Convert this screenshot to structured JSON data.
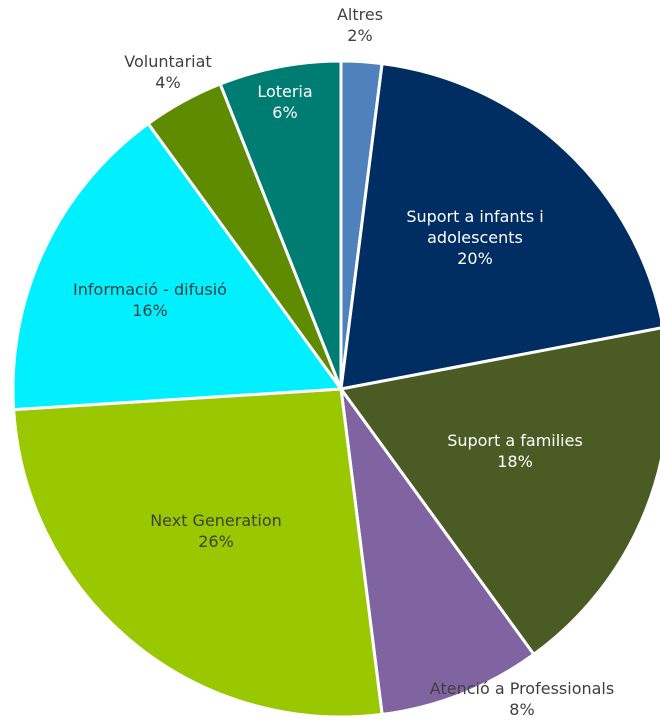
{
  "chart_data": {
    "type": "pie",
    "title": "",
    "legend": "none",
    "slices": [
      {
        "name": "Altres",
        "value": 2,
        "pct_label": "2%",
        "color": "#4f81bd",
        "label_color": "#404040",
        "label_lines": [
          "Altres"
        ]
      },
      {
        "name": "Suport a infants i adolescents",
        "value": 20,
        "pct_label": "20%",
        "color": "#002d62",
        "label_color": "#ffffff",
        "label_lines": [
          "Suport a infants i",
          "adolescents"
        ]
      },
      {
        "name": "Suport a famílies",
        "value": 18,
        "pct_label": "18%",
        "color": "#4a5b23",
        "label_color": "#ffffff",
        "label_lines": [
          "Suport a families"
        ]
      },
      {
        "name": "Atenció a Professionals",
        "value": 8,
        "pct_label": "8%",
        "color": "#8064a2",
        "label_color": "#404040",
        "label_lines": [
          "Atenció a Professionals"
        ]
      },
      {
        "name": "Next Generation",
        "value": 26,
        "pct_label": "26%",
        "color": "#99c800",
        "label_color": "#404040",
        "label_lines": [
          "Next Generation"
        ]
      },
      {
        "name": "Informació - difusió",
        "value": 16,
        "pct_label": "16%",
        "color": "#00f0ff",
        "label_color": "#404040",
        "label_lines": [
          "Informació - difusió"
        ]
      },
      {
        "name": "Voluntariat",
        "value": 4,
        "pct_label": "4%",
        "color": "#5f8b00",
        "label_color": "#404040",
        "label_lines": [
          "Voluntariat"
        ]
      },
      {
        "name": "Loteria",
        "value": 6,
        "pct_label": "6%",
        "color": "#007d73",
        "label_color": "#ffffff",
        "label_lines": [
          "Loteria"
        ]
      }
    ]
  }
}
